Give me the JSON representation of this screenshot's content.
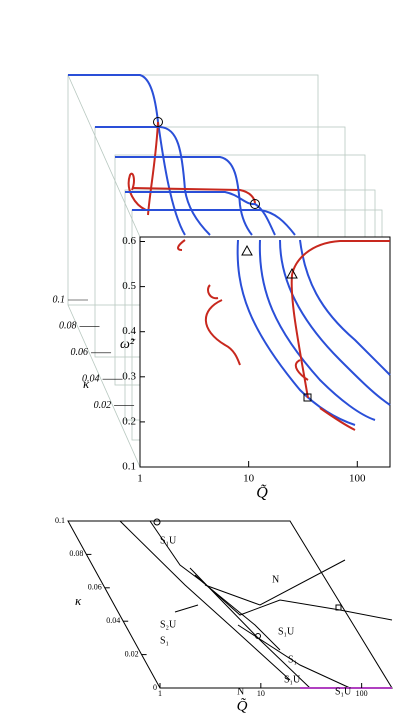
{
  "top_panel": {
    "yticks": [
      0.1,
      0.2,
      0.3,
      0.4,
      0.5,
      0.6
    ],
    "ylim": [
      0.1,
      0.61
    ],
    "xticks": [
      1,
      10,
      100
    ],
    "xlim": [
      1,
      200
    ],
    "kappa_ticks": [
      0.1,
      0.08,
      0.06,
      0.04,
      0.02
    ],
    "ylabel": "ω̃²",
    "xlabel": "Q̃",
    "kappa_label": "κ"
  },
  "bottom_panel": {
    "kappa_ticks": [
      0.1,
      0.08,
      0.06,
      0.04,
      0.02,
      0
    ],
    "kappa_lim": [
      0,
      0.1
    ],
    "xticks": [
      1,
      10,
      100
    ],
    "xlim": [
      1,
      200
    ],
    "kappa_label": "κ",
    "xlabel": "Q̃",
    "regions": [
      "S₁U",
      "N",
      "S₂U",
      "S₁U",
      "S₁",
      "S₁",
      "S₁U",
      "N",
      "S₁U"
    ]
  }
}
